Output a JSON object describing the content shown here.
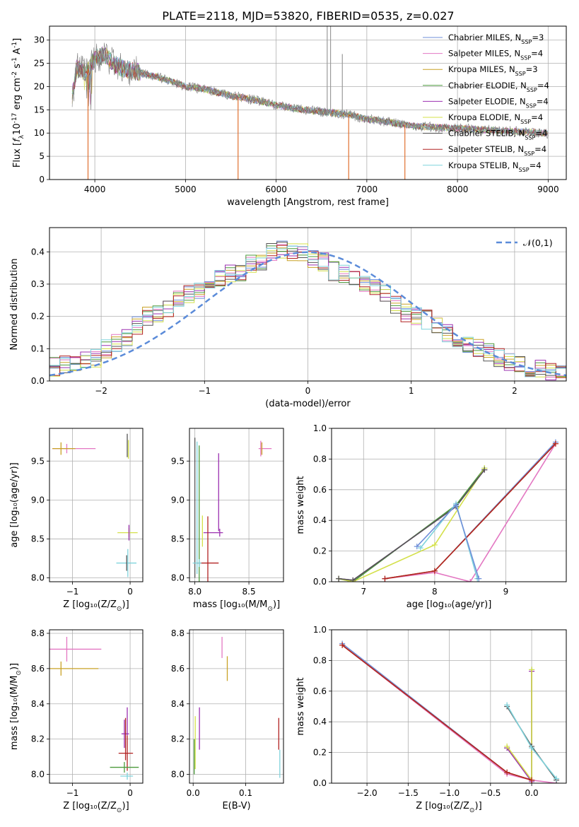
{
  "figure_title": "PLATE=2118, MJD=53820, FIBERID=0535, z=0.027",
  "models": [
    {
      "label": "Chabrier MILES, N$_{SSP}$=3",
      "color": "#6f8fd9"
    },
    {
      "label": "Salpeter MILES, N$_{SSP}$=4",
      "color": "#e377c2"
    },
    {
      "label": "Kroupa MILES, N$_{SSP}$=3",
      "color": "#c9a227"
    },
    {
      "label": "Chabrier ELODIE, N$_{SSP}$=4",
      "color": "#4c9a3c"
    },
    {
      "label": "Salpeter ELODIE, N$_{SSP}$=4",
      "color": "#9b30b0"
    },
    {
      "label": "Kroupa ELODIE, N$_{SSP}$=4",
      "color": "#d4e04a"
    },
    {
      "label": "Chabrier STELIB, N$_{SSP}$=4",
      "color": "#555555"
    },
    {
      "label": "Salpeter STELIB, N$_{SSP}$=4",
      "color": "#b22222"
    },
    {
      "label": "Kroupa STELIB, N$_{SSP}$=4",
      "color": "#7fd3dc"
    }
  ],
  "chart_data": [
    {
      "id": "spectrum",
      "type": "line",
      "xlabel": "wavelength [Angstrom, rest frame]",
      "ylabel": "Flux [$f_\\lambda$$10^{-17}$ erg cm$^{-2}$ s$^{-1}$ A$^{-1}$]",
      "xlim": [
        3500,
        9200
      ],
      "ylim": [
        0,
        33
      ],
      "xticks": [
        4000,
        5000,
        6000,
        7000,
        8000,
        9000
      ],
      "yticks": [
        0,
        5,
        10,
        15,
        20,
        25,
        30
      ],
      "legend_loc": "top-right",
      "data_flux": {
        "x": [
          3750,
          3800,
          3900,
          4000,
          4100,
          4200,
          4300,
          4500,
          4700,
          4861,
          5000,
          5200,
          5500,
          5800,
          6000,
          6300,
          6563,
          6800,
          7000,
          7200,
          7500,
          8000,
          8500,
          9000
        ],
        "y": [
          18,
          24,
          23,
          26,
          27,
          25,
          24,
          23,
          22,
          21,
          20,
          19.5,
          18,
          17,
          16,
          15,
          14.5,
          14,
          13,
          12.5,
          11.5,
          11,
          10.5,
          10
        ]
      },
      "model_flux": {
        "x": [
          3750,
          3800,
          3900,
          4000,
          4100,
          4200,
          4300,
          4500,
          4700,
          4861,
          5000,
          5200,
          5500,
          5800,
          6000,
          6300,
          6563,
          6800,
          7000,
          7200,
          7500,
          8000,
          8500,
          9000
        ],
        "y": [
          19,
          24.5,
          24,
          27,
          27.5,
          25.5,
          24.5,
          23.5,
          22,
          21,
          20.5,
          19.5,
          18,
          17,
          16,
          15,
          14.5,
          14,
          13,
          12.5,
          11.5,
          11,
          10.5,
          10
        ]
      },
      "spikes": [
        {
          "x": 3925,
          "y": 0
        },
        {
          "x": 5580,
          "y": 0
        },
        {
          "x": 6800,
          "y": 0
        },
        {
          "x": 7420,
          "y": 0
        },
        {
          "x": 6563,
          "y": 33
        },
        {
          "x": 6600,
          "y": 33
        },
        {
          "x": 6730,
          "y": 27
        }
      ]
    },
    {
      "id": "residuals",
      "type": "histogram",
      "xlabel": "(data-model)/error",
      "ylabel": "Normed distribution",
      "xlim": [
        -2.5,
        2.5
      ],
      "ylim": [
        0,
        0.475
      ],
      "xticks": [
        -2,
        -1,
        0,
        1,
        2
      ],
      "xtick_labels": [
        "−2",
        "−1",
        "0",
        "1",
        "2"
      ],
      "yticks": [
        0,
        0.1,
        0.2,
        0.3,
        0.4
      ],
      "ytick_labels": [
        "0.0",
        "0.1",
        "0.2",
        "0.3",
        "0.4"
      ],
      "grid": true,
      "legend": "$\\mathcal{N}(0,1)$",
      "legend_loc": "top-right",
      "bin_edges": [
        -2.5,
        -2.4,
        -2.3,
        -2.2,
        -2.1,
        -2.0,
        -1.9,
        -1.8,
        -1.7,
        -1.6,
        -1.5,
        -1.4,
        -1.3,
        -1.2,
        -1.1,
        -1.0,
        -0.9,
        -0.8,
        -0.7,
        -0.6,
        -0.5,
        -0.4,
        -0.3,
        -0.2,
        -0.1,
        0.0,
        0.1,
        0.2,
        0.3,
        0.4,
        0.5,
        0.6,
        0.7,
        0.8,
        0.9,
        1.0,
        1.1,
        1.2,
        1.3,
        1.4,
        1.5,
        1.6,
        1.7,
        1.8,
        1.9,
        2.0,
        2.1,
        2.2,
        2.3,
        2.4,
        2.5
      ],
      "base_values": [
        0.045,
        0.05,
        0.05,
        0.06,
        0.07,
        0.1,
        0.12,
        0.13,
        0.17,
        0.2,
        0.21,
        0.22,
        0.25,
        0.27,
        0.28,
        0.3,
        0.32,
        0.33,
        0.34,
        0.36,
        0.37,
        0.4,
        0.41,
        0.4,
        0.4,
        0.38,
        0.37,
        0.34,
        0.33,
        0.32,
        0.3,
        0.29,
        0.27,
        0.24,
        0.21,
        0.2,
        0.19,
        0.17,
        0.15,
        0.13,
        0.11,
        0.1,
        0.09,
        0.07,
        0.06,
        0.05,
        0.04,
        0.035,
        0.03,
        0.025
      ],
      "gaussian": {
        "mu": 0,
        "sigma": 1
      }
    },
    {
      "id": "age-vs-Z",
      "type": "errorbar",
      "xlabel": "Z [$\\log_{10}(Z/Z_\\odot)$]",
      "ylabel": "age  [$\\log_{10}(age/yr)$]",
      "xlim": [
        -1.4,
        0.22
      ],
      "ylim": [
        7.95,
        9.92
      ],
      "xticks": [
        -1,
        0
      ],
      "xtick_labels": [
        "−1",
        "0"
      ],
      "yticks": [
        8.0,
        8.5,
        9.0,
        9.5
      ],
      "ytick_labels": [
        "8.0",
        "8.5",
        "9.0",
        "9.5"
      ],
      "points": [
        {
          "x": -1.1,
          "y": 9.66,
          "xerr": [
            0.25,
            0.5
          ],
          "yerr": 0.06,
          "model": 1
        },
        {
          "x": -1.2,
          "y": 9.66,
          "xerr": [
            0.15,
            0.25
          ],
          "yerr": 0.08,
          "model": 2
        },
        {
          "x": -0.05,
          "y": 9.7,
          "yerr": 0.15,
          "model": 6
        },
        {
          "x": -0.03,
          "y": 9.65,
          "yerr": 0.12,
          "model": 5
        },
        {
          "x": -0.02,
          "y": 8.58,
          "xerr": [
            0.2,
            0.15
          ],
          "yerr": 0.06,
          "model": 5
        },
        {
          "x": -0.02,
          "y": 8.58,
          "yerr": 0.1,
          "model": 4
        },
        {
          "x": -0.04,
          "y": 8.19,
          "xerr": [
            0.2,
            0.15
          ],
          "yerr": 0.18,
          "model": 8
        },
        {
          "x": -0.06,
          "y": 8.19,
          "yerr": 0.1,
          "model": 6
        }
      ]
    },
    {
      "id": "age-vs-mass",
      "type": "errorbar",
      "xlabel": "mass [$\\log_{10}(M/M_\\odot)$]",
      "xlim": [
        7.95,
        8.82
      ],
      "ylim": [
        7.95,
        9.92
      ],
      "xticks": [
        8.0,
        8.5
      ],
      "xtick_labels": [
        "8.0",
        "8.5"
      ],
      "yticks": [
        8.0,
        8.5,
        9.0,
        9.5
      ],
      "ytick_labels": [
        "8.0",
        "8.5",
        "9.0",
        "9.5"
      ],
      "points": [
        {
          "x": 8.0,
          "y": 8.9,
          "yerr": 0.9,
          "model": 6
        },
        {
          "x": 8.02,
          "y": 8.9,
          "yerr": 0.85,
          "model": 8
        },
        {
          "x": 8.04,
          "y": 8.8,
          "yerr": 0.9,
          "model": 3
        },
        {
          "x": 8.07,
          "y": 8.6,
          "yerr": 0.2,
          "model": 5
        },
        {
          "x": 8.23,
          "y": 8.58,
          "xerr": [
            0.15,
            0.03
          ],
          "yerr": 0.05,
          "model": 4
        },
        {
          "x": 8.12,
          "y": 8.19,
          "xerr": [
            0.1,
            0.1
          ],
          "yerr": 0.6,
          "model": 7
        },
        {
          "x": 8.22,
          "y": 9.1,
          "yerr": 0.5,
          "model": 4
        },
        {
          "x": 8.61,
          "y": 9.66,
          "xerr": [
            0.02,
            0.1
          ],
          "yerr": 0.1,
          "model": 1
        },
        {
          "x": 8.62,
          "y": 9.66,
          "yerr": 0.08,
          "model": 2
        },
        {
          "x": 8.04,
          "y": 8.19,
          "xerr": [
            0.06,
            0.02
          ],
          "yerr": 0.05,
          "model": 8
        }
      ]
    },
    {
      "id": "weight-vs-age",
      "type": "line",
      "xlabel": "age  [$\\log_{10}(age/yr)$]",
      "ylabel": "mass weight",
      "xlim": [
        6.55,
        9.85
      ],
      "ylim": [
        0,
        1
      ],
      "xticks": [
        7,
        8,
        9
      ],
      "xtick_labels": [
        "7",
        "8",
        "9"
      ],
      "yticks": [
        0,
        0.2,
        0.4,
        0.6,
        0.8,
        1.0
      ],
      "ytick_labels": [
        "0.0",
        "0.2",
        "0.4",
        "0.6",
        "0.8",
        "1.0"
      ],
      "grid": true,
      "series": [
        {
          "model": 0,
          "x": [
            7.3,
            8.0,
            9.7
          ],
          "y": [
            0.02,
            0.07,
            0.91
          ]
        },
        {
          "model": 1,
          "x": [
            7.3,
            8.0,
            8.5,
            9.7
          ],
          "y": [
            0.02,
            0.06,
            0.0,
            0.9
          ]
        },
        {
          "model": 2,
          "x": [
            7.3,
            8.0,
            9.7
          ],
          "y": [
            0.02,
            0.07,
            0.9
          ]
        },
        {
          "model": 3,
          "x": [
            6.65,
            6.85,
            8.3,
            8.7
          ],
          "y": [
            0.02,
            0.0,
            0.5,
            0.74
          ]
        },
        {
          "model": 4,
          "x": [
            6.65,
            6.85,
            8.3,
            8.7
          ],
          "y": [
            0.02,
            0.01,
            0.49,
            0.73
          ]
        },
        {
          "model": 5,
          "x": [
            6.65,
            6.85,
            8.0,
            8.7
          ],
          "y": [
            0.02,
            0.0,
            0.24,
            0.74
          ]
        },
        {
          "model": 6,
          "x": [
            6.65,
            6.85,
            8.3,
            8.7
          ],
          "y": [
            0.02,
            0.01,
            0.49,
            0.73
          ]
        },
        {
          "model": 7,
          "x": [
            7.3,
            8.0,
            9.7
          ],
          "y": [
            0.02,
            0.07,
            0.9
          ]
        },
        {
          "model": 8,
          "x": [
            7.8,
            8.3,
            8.6
          ],
          "y": [
            0.22,
            0.51,
            0.02
          ]
        },
        {
          "model": 0,
          "x": [
            7.75,
            8.3,
            8.62
          ],
          "y": [
            0.23,
            0.5,
            0.02
          ]
        }
      ]
    },
    {
      "id": "mass-vs-Z",
      "type": "errorbar",
      "xlabel": "Z [$\\log_{10}(Z/Z_\\odot)$]",
      "ylabel": "mass [$\\log_{10}(M/M_\\odot)$]",
      "xlim": [
        -1.4,
        0.22
      ],
      "ylim": [
        7.95,
        8.82
      ],
      "xticks": [
        -1,
        0
      ],
      "xtick_labels": [
        "−1",
        "0"
      ],
      "yticks": [
        8.0,
        8.2,
        8.4,
        8.6,
        8.8
      ],
      "ytick_labels": [
        "8.0",
        "8.2",
        "8.4",
        "8.6",
        "8.8"
      ],
      "points": [
        {
          "x": -1.1,
          "y": 8.71,
          "xerr": [
            0.3,
            0.6
          ],
          "yerr": 0.07,
          "model": 1
        },
        {
          "x": -1.2,
          "y": 8.6,
          "xerr": [
            0.2,
            0.65
          ],
          "yerr": 0.04,
          "model": 2
        },
        {
          "x": -0.05,
          "y": 8.3,
          "yerr": 0.08,
          "model": 4
        },
        {
          "x": -0.1,
          "y": 8.23,
          "xerr": [
            0.05,
            0.08
          ],
          "yerr": 0.08,
          "model": 4
        },
        {
          "x": -0.08,
          "y": 8.2,
          "yerr": 0.12,
          "model": 7
        },
        {
          "x": -0.05,
          "y": 8.12,
          "xerr": [
            0.15,
            0.1
          ],
          "yerr": 0.1,
          "model": 7
        },
        {
          "x": -0.1,
          "y": 8.04,
          "xerr": [
            0.25,
            0.25
          ],
          "yerr": 0.03,
          "model": 3
        },
        {
          "x": -0.05,
          "y": 7.99,
          "xerr": [
            0.12,
            0.1
          ],
          "yerr": 0.02,
          "model": 8
        }
      ]
    },
    {
      "id": "mass-vs-ebv",
      "type": "errorbar",
      "xlabel": "E(B-V)",
      "xlim": [
        -0.007,
        0.172
      ],
      "ylim": [
        7.95,
        8.82
      ],
      "xticks": [
        0.0,
        0.1
      ],
      "xtick_labels": [
        "0.0",
        "0.1"
      ],
      "yticks": [
        8.0,
        8.2,
        8.4,
        8.6,
        8.8
      ],
      "ytick_labels": [
        "8.0",
        "8.2",
        "8.4",
        "8.6",
        "8.8"
      ],
      "points": [
        {
          "x": 0.055,
          "y": 8.72,
          "yerr": 0.06,
          "model": 1
        },
        {
          "x": 0.065,
          "y": 8.6,
          "yerr": 0.07,
          "model": 2
        },
        {
          "x": 0.012,
          "y": 8.26,
          "yerr": 0.12,
          "model": 4
        },
        {
          "x": 0.004,
          "y": 8.18,
          "yerr": 0.15,
          "model": 5
        },
        {
          "x": 0.002,
          "y": 8.1,
          "yerr": 0.1,
          "model": 3
        },
        {
          "x": 0.163,
          "y": 8.23,
          "yerr": 0.09,
          "model": 7
        },
        {
          "x": 0.165,
          "y": 8.06,
          "yerr": 0.08,
          "model": 8
        }
      ]
    },
    {
      "id": "weight-vs-Z",
      "type": "line",
      "xlabel": "Z [$\\log_{10}(Z/Z_\\odot)$]",
      "ylabel": "mass weight",
      "xlim": [
        -2.43,
        0.42
      ],
      "ylim": [
        0,
        1
      ],
      "xticks": [
        -2.0,
        -1.5,
        -1.0,
        -0.5,
        0.0
      ],
      "xtick_labels": [
        "−2.0",
        "−1.5",
        "−1.0",
        "−0.5",
        "0.0"
      ],
      "yticks": [
        0,
        0.2,
        0.4,
        0.6,
        0.8,
        1.0
      ],
      "ytick_labels": [
        "0.0",
        "0.2",
        "0.4",
        "0.6",
        "0.8",
        "1.0"
      ],
      "grid": true,
      "series": [
        {
          "model": 0,
          "x": [
            -2.3,
            -0.3,
            0.0
          ],
          "y": [
            0.91,
            0.07,
            0.02
          ]
        },
        {
          "model": 1,
          "x": [
            -2.3,
            -0.3,
            0.0,
            0.3
          ],
          "y": [
            0.9,
            0.06,
            0.02,
            0.0
          ]
        },
        {
          "model": 2,
          "x": [
            -2.3,
            -0.3,
            0.0
          ],
          "y": [
            0.9,
            0.07,
            0.02
          ]
        },
        {
          "model": 3,
          "x": [
            -0.3,
            0.0,
            0.0
          ],
          "y": [
            0.23,
            0.02,
            0.74
          ]
        },
        {
          "model": 4,
          "x": [
            -0.3,
            0.0,
            0.0
          ],
          "y": [
            0.23,
            0.01,
            0.73
          ]
        },
        {
          "model": 5,
          "x": [
            -0.3,
            0.0,
            0.0
          ],
          "y": [
            0.24,
            0.02,
            0.74
          ]
        },
        {
          "model": 6,
          "x": [
            -0.3,
            0.0,
            0.3
          ],
          "y": [
            0.5,
            0.24,
            0.02
          ]
        },
        {
          "model": 7,
          "x": [
            -2.3,
            -0.3,
            0.0
          ],
          "y": [
            0.9,
            0.07,
            0.02
          ]
        },
        {
          "model": 8,
          "x": [
            -0.3,
            0.0,
            0.3
          ],
          "y": [
            0.51,
            0.23,
            0.03
          ]
        }
      ]
    }
  ]
}
